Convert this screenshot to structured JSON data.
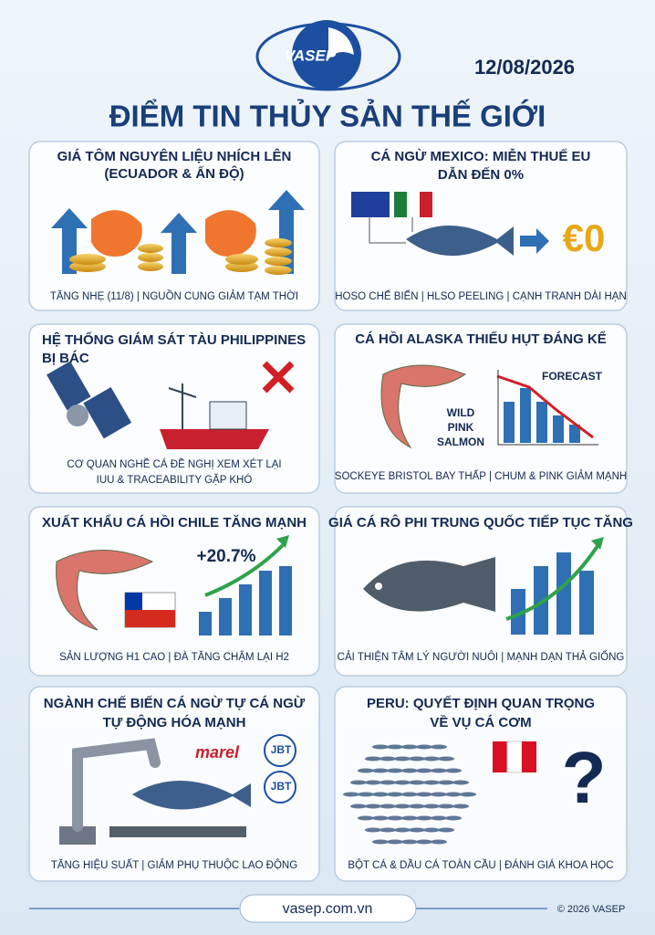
{
  "header": {
    "logo_text": "VASEP",
    "date": "12/08/2026",
    "title": "ĐIỂM TIN THỦY SẢN THẾ GIỚI"
  },
  "cards": [
    {
      "title": [
        "GIÁ TÔM NGUYÊN LIỆU NHÍCH LÊN",
        "(ECUADOR & ẤN ĐỘ)"
      ],
      "caption": [
        "TĂNG NHẸ (11/8) | NGUỒN CUNG GIẢM TẠM THỜI"
      ],
      "labels": []
    },
    {
      "title": [
        "CÁ NGỪ MEXICO: MIỄN THUẾ EU",
        "DẪN ĐẾN 0%"
      ],
      "caption": [
        "HOSO CHẾ BIẾN | HLSO PEELING | CẠNH TRANH DÀI HẠN"
      ],
      "labels": [
        "€0"
      ]
    },
    {
      "title": [
        "HỆ THỐNG GIÁM SÁT TÀU PHILIPPINES",
        "BỊ BÁC"
      ],
      "caption": [
        "CƠ QUAN NGHỀ CÁ ĐỀ NGHỊ XEM XÉT LẠI",
        "IUU & TRACEABILITY GẶP KHÓ"
      ],
      "labels": []
    },
    {
      "title": [
        "CÁ HỒI ALASKA THIẾU HỤT ĐÁNG KỂ"
      ],
      "caption": [
        "SOCKEYE BRISTOL BAY THẤP | CHUM & PINK GIẢM MẠNH"
      ],
      "labels": [
        "WILD",
        "PINK",
        "SALMON",
        "FORECAST"
      ]
    },
    {
      "title": [
        "XUẤT KHẨU CÁ HỒI CHILE TĂNG MẠNH"
      ],
      "caption": [
        "SẢN LƯỢNG H1 CAO | ĐÀ TĂNG CHẬM LẠI H2"
      ],
      "labels": [
        "+20.7%"
      ]
    },
    {
      "title": [
        "GIÁ CÁ RÔ PHI TRUNG QUỐC TIẾP TỤC TĂNG"
      ],
      "caption": [
        "CẢI THIỆN TÂM LÝ NGƯỜI NUÔI | MẠNH DẠN THẢ GIỐNG"
      ],
      "labels": []
    },
    {
      "title": [
        "NGÀNH CHẾ BIẾN CÁ NGỪ TỰ CÁ NGỪ",
        "TỰ ĐỘNG HÓA MẠNH"
      ],
      "caption": [
        "TĂNG HIỆU SUẤT | GIẢM PHỤ THUỘC LAO ĐỘNG"
      ],
      "labels": [
        "marel",
        "JBT",
        "JBT"
      ]
    },
    {
      "title": [
        "PERU: QUYẾT ĐỊNH QUAN TRỌNG",
        "VỀ VỤ CÁ CƠM"
      ],
      "caption": [
        "BỘT CÁ & DẦU CÁ TOÀN CẦU | ĐÁNH GIÁ KHOA HỌC"
      ],
      "labels": [
        "?"
      ]
    }
  ],
  "footer": {
    "website": "vasep.com.vn",
    "copyright": "© 2026 VASEP"
  }
}
